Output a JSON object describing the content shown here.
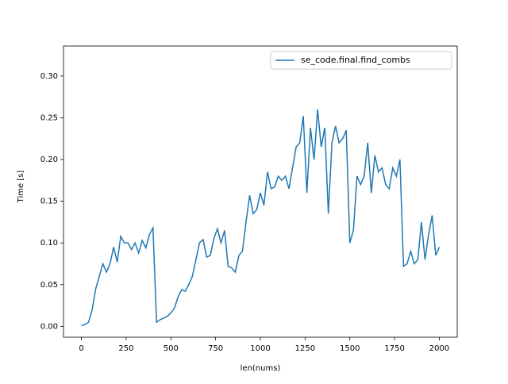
{
  "chart_data": {
    "type": "line",
    "x_label": "len(nums)",
    "y_label": "Time [s]",
    "x": [
      0,
      20,
      40,
      60,
      80,
      100,
      120,
      140,
      160,
      180,
      200,
      220,
      240,
      260,
      280,
      300,
      320,
      340,
      360,
      380,
      400,
      420,
      440,
      460,
      480,
      500,
      520,
      540,
      560,
      580,
      600,
      620,
      640,
      660,
      680,
      700,
      720,
      740,
      760,
      780,
      800,
      820,
      840,
      860,
      880,
      900,
      920,
      940,
      960,
      980,
      1000,
      1020,
      1040,
      1060,
      1080,
      1100,
      1120,
      1140,
      1160,
      1180,
      1200,
      1220,
      1240,
      1260,
      1280,
      1300,
      1320,
      1340,
      1360,
      1380,
      1400,
      1420,
      1440,
      1460,
      1480,
      1500,
      1520,
      1540,
      1560,
      1580,
      1600,
      1620,
      1640,
      1660,
      1680,
      1700,
      1720,
      1740,
      1760,
      1780,
      1800,
      1820,
      1840,
      1860,
      1880,
      1900,
      1920,
      1940,
      1960,
      1980,
      2000
    ],
    "series": [
      {
        "name": "se_code.final.find_combs",
        "color": "#1f77b4",
        "values": [
          0.001,
          0.002,
          0.005,
          0.02,
          0.045,
          0.06,
          0.075,
          0.065,
          0.075,
          0.095,
          0.077,
          0.108,
          0.1,
          0.1,
          0.092,
          0.1,
          0.088,
          0.103,
          0.094,
          0.11,
          0.118,
          0.005,
          0.008,
          0.01,
          0.012,
          0.016,
          0.022,
          0.035,
          0.044,
          0.042,
          0.05,
          0.06,
          0.08,
          0.1,
          0.104,
          0.083,
          0.085,
          0.105,
          0.117,
          0.1,
          0.115,
          0.072,
          0.07,
          0.065,
          0.085,
          0.09,
          0.125,
          0.157,
          0.135,
          0.14,
          0.16,
          0.145,
          0.185,
          0.165,
          0.167,
          0.18,
          0.175,
          0.18,
          0.165,
          0.19,
          0.215,
          0.22,
          0.252,
          0.16,
          0.238,
          0.2,
          0.26,
          0.215,
          0.238,
          0.135,
          0.22,
          0.24,
          0.22,
          0.225,
          0.235,
          0.1,
          0.115,
          0.18,
          0.17,
          0.18,
          0.22,
          0.16,
          0.205,
          0.185,
          0.19,
          0.17,
          0.165,
          0.19,
          0.18,
          0.2,
          0.072,
          0.075,
          0.09,
          0.075,
          0.08,
          0.125,
          0.08,
          0.11,
          0.133,
          0.085,
          0.095
        ]
      }
    ],
    "xlim": [
      -100,
      2100
    ],
    "ylim": [
      -0.013,
      0.336
    ],
    "xticks": [
      0,
      250,
      500,
      750,
      1000,
      1250,
      1500,
      1750,
      2000
    ],
    "yticks": [
      {
        "value": 0,
        "label": "0.00"
      },
      0.05,
      {
        "value": 0.1,
        "label": "0.10"
      },
      0.15,
      {
        "value": 0.2,
        "label": "0.20"
      },
      0.25,
      {
        "value": 0.3,
        "label": "0.30"
      }
    ],
    "legend": "upper right",
    "grid": false
  }
}
